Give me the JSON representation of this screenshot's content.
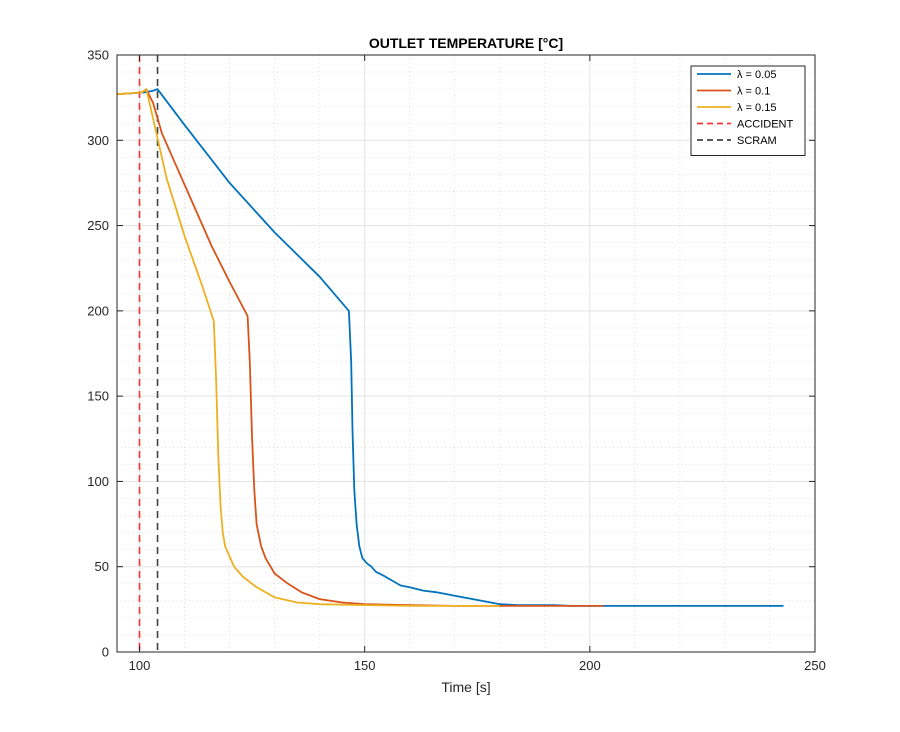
{
  "chart_data": {
    "type": "line",
    "title": "OUTLET TEMPERATURE [°C]",
    "xlabel": "Time [s]",
    "ylabel": "",
    "xlim": [
      95,
      250
    ],
    "ylim": [
      0,
      350
    ],
    "xticks": [
      100,
      150,
      200,
      250
    ],
    "yticks": [
      0,
      50,
      100,
      150,
      200,
      250,
      300,
      350
    ],
    "grid": "on (major solid, minor dotted)",
    "legend_position": "top-right",
    "series": [
      {
        "name": "λ = 0.05",
        "color": "#0072BD",
        "style": "solid",
        "x": [
          95,
          101,
          103,
          104,
          110,
          120,
          130,
          140,
          146.5,
          147,
          147.3,
          147.7,
          148.2,
          148.8,
          149.5,
          150.5,
          151.5,
          152.5,
          154,
          156,
          158,
          160,
          163,
          166,
          170,
          174,
          178,
          180,
          184,
          188,
          192,
          196,
          200,
          205,
          210,
          220,
          230,
          243
        ],
        "y": [
          327,
          328,
          329,
          330,
          309,
          275,
          246,
          220,
          200,
          170,
          130,
          95,
          75,
          62,
          55,
          52,
          50,
          47,
          45,
          42,
          39,
          38,
          36,
          35,
          33,
          31,
          29,
          28,
          27.5,
          27.5,
          27.5,
          27,
          27,
          27,
          27,
          27,
          27,
          27
        ]
      },
      {
        "name": "λ = 0.1",
        "color": "#D95319",
        "style": "solid",
        "x": [
          95,
          100.5,
          101.5,
          103,
          105,
          108,
          112,
          116,
          120,
          124,
          124.5,
          125,
          125.5,
          126,
          127,
          128,
          130,
          133,
          136,
          140,
          145,
          150,
          160,
          170,
          180,
          190,
          203
        ],
        "y": [
          327,
          328,
          330,
          322,
          304,
          286,
          262,
          238,
          217,
          197,
          170,
          125,
          95,
          75,
          62,
          55,
          46,
          40,
          35,
          31,
          29,
          28,
          27.5,
          27,
          27,
          27,
          27
        ]
      },
      {
        "name": "λ = 0.15",
        "color": "#EDB120",
        "style": "solid",
        "x": [
          95,
          100.5,
          101.5,
          103,
          106,
          110,
          114,
          116.5,
          117,
          117.5,
          118,
          118.5,
          119,
          120,
          121,
          123,
          126,
          130,
          135,
          140,
          150,
          160,
          170,
          180
        ],
        "y": [
          327,
          328,
          330,
          313,
          278,
          244,
          214,
          194,
          160,
          115,
          85,
          70,
          62,
          56,
          50,
          44,
          38,
          32,
          29,
          28,
          27.5,
          27,
          27,
          27
        ]
      }
    ],
    "vertical_lines": [
      {
        "name": "ACCIDENT",
        "x": 100,
        "color": "#FF3333",
        "style": "dashed"
      },
      {
        "name": "SCRAM",
        "x": 104,
        "color": "#404040",
        "style": "dashed"
      }
    ]
  }
}
